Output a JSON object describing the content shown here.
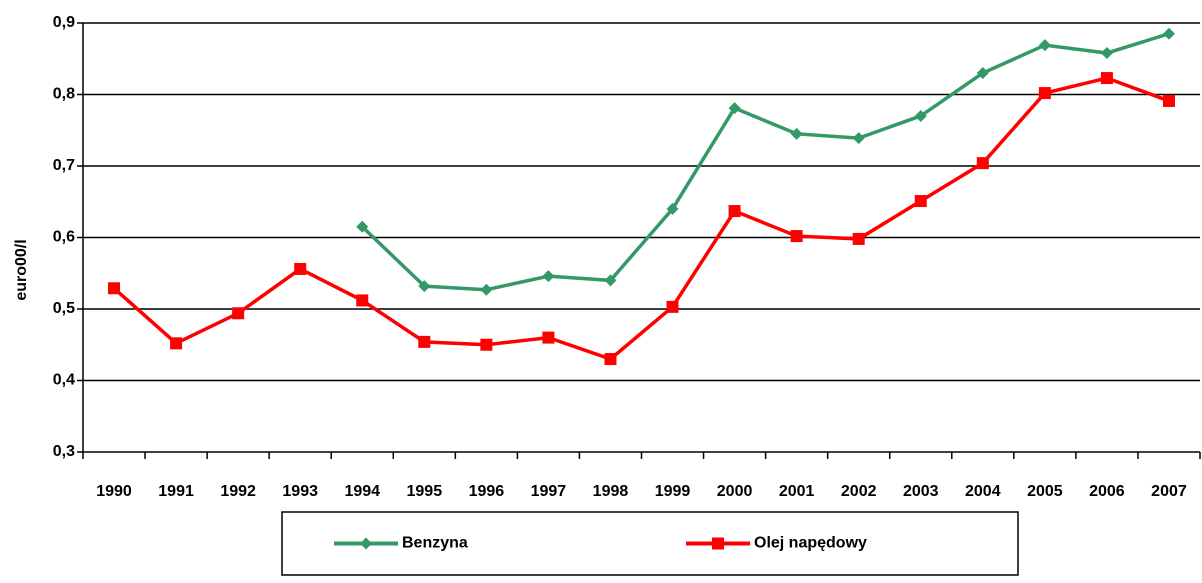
{
  "chart_data": {
    "type": "line",
    "y_label": "euro00/l",
    "categories": [
      "1990",
      "1991",
      "1992",
      "1993",
      "1994",
      "1995",
      "1996",
      "1997",
      "1998",
      "1999",
      "2000",
      "2001",
      "2002",
      "2003",
      "2004",
      "2005",
      "2006",
      "2007"
    ],
    "series": [
      {
        "name": "Benzyna",
        "color": "#339966",
        "marker": "diamond",
        "values": [
          null,
          null,
          null,
          null,
          0.615,
          0.532,
          0.527,
          0.546,
          0.54,
          0.64,
          0.781,
          0.745,
          0.739,
          0.77,
          0.83,
          0.869,
          0.858,
          0.885
        ]
      },
      {
        "name": "Olej napędowy",
        "color": "#ff0000",
        "marker": "square",
        "values": [
          0.529,
          0.452,
          0.494,
          0.556,
          0.512,
          0.454,
          0.45,
          0.46,
          0.43,
          0.503,
          0.637,
          0.602,
          0.598,
          0.651,
          0.704,
          0.802,
          0.823,
          0.791
        ]
      }
    ],
    "ylim": [
      0.3,
      0.9
    ],
    "yticks": [
      {
        "value": 0.3,
        "label": "0,3"
      },
      {
        "value": 0.4,
        "label": "0,4"
      },
      {
        "value": 0.5,
        "label": "0,5"
      },
      {
        "value": 0.6,
        "label": "0,6"
      },
      {
        "value": 0.7,
        "label": "0,7"
      },
      {
        "value": 0.8,
        "label": "0,8"
      },
      {
        "value": 0.9,
        "label": "0,9"
      }
    ],
    "grid": true,
    "legend": "bottom"
  }
}
